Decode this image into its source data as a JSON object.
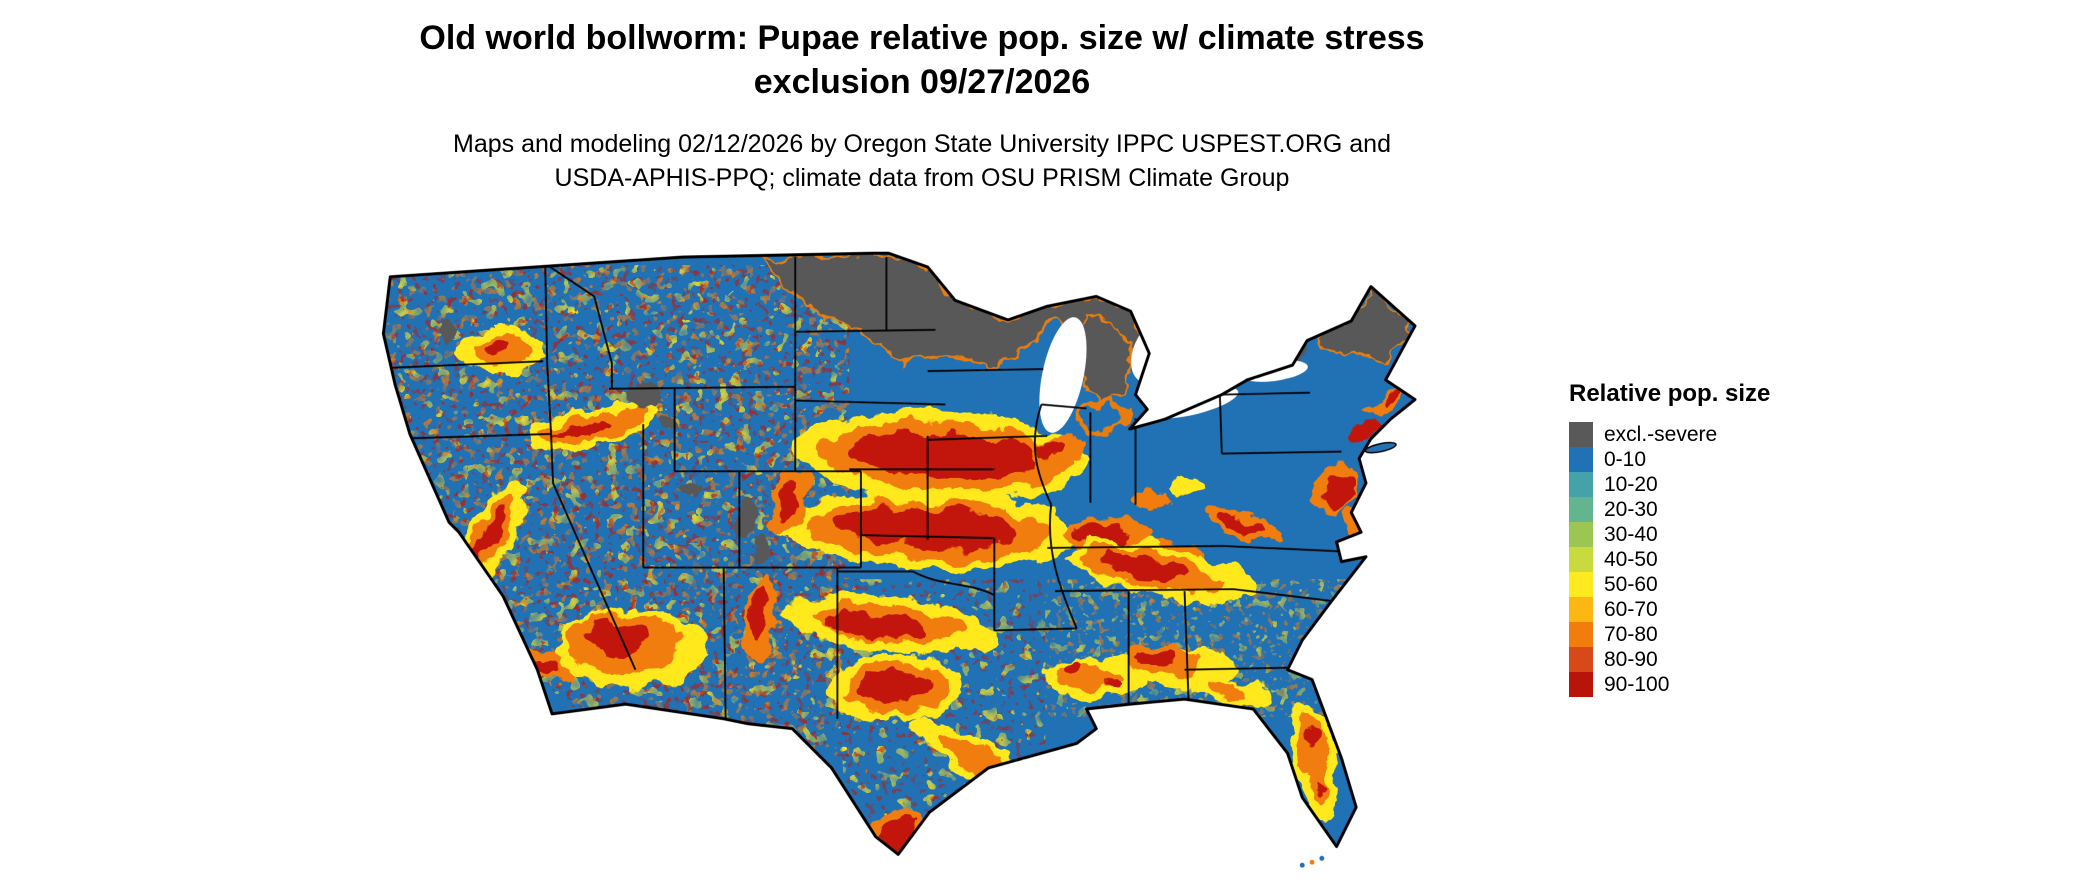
{
  "title": {
    "line1": "Old world bollworm: Pupae relative pop. size w/ climate stress",
    "line2": "exclusion 09/27/2026"
  },
  "subtitle": {
    "line1": "Maps and modeling 02/12/2026 by Oregon State University IPPC USPEST.ORG and",
    "line2": "USDA-APHIS-PPQ; climate data from OSU PRISM Climate Group"
  },
  "legend": {
    "title": "Relative pop. size",
    "entries": [
      {
        "label": "excl.-severe",
        "color": "#595959"
      },
      {
        "label": "0-10",
        "color": "#2171b5"
      },
      {
        "label": "10-20",
        "color": "#45a2a8"
      },
      {
        "label": "20-30",
        "color": "#63b58f"
      },
      {
        "label": "30-40",
        "color": "#9cc653"
      },
      {
        "label": "40-50",
        "color": "#c8da3d"
      },
      {
        "label": "50-60",
        "color": "#ffe91f"
      },
      {
        "label": "60-70",
        "color": "#fdb713"
      },
      {
        "label": "70-80",
        "color": "#f07d0c"
      },
      {
        "label": "80-90",
        "color": "#d8491a"
      },
      {
        "label": "90-100",
        "color": "#b91409"
      }
    ]
  },
  "map": {
    "region": "Contiguous United States",
    "base_color": "#2171b5",
    "exclusion_color": "#595959",
    "legend_title": "Relative pop. size",
    "classes": [
      "excl.-severe",
      "0-10",
      "10-20",
      "20-30",
      "30-40",
      "40-50",
      "50-60",
      "60-70",
      "70-80",
      "80-90",
      "90-100"
    ]
  }
}
